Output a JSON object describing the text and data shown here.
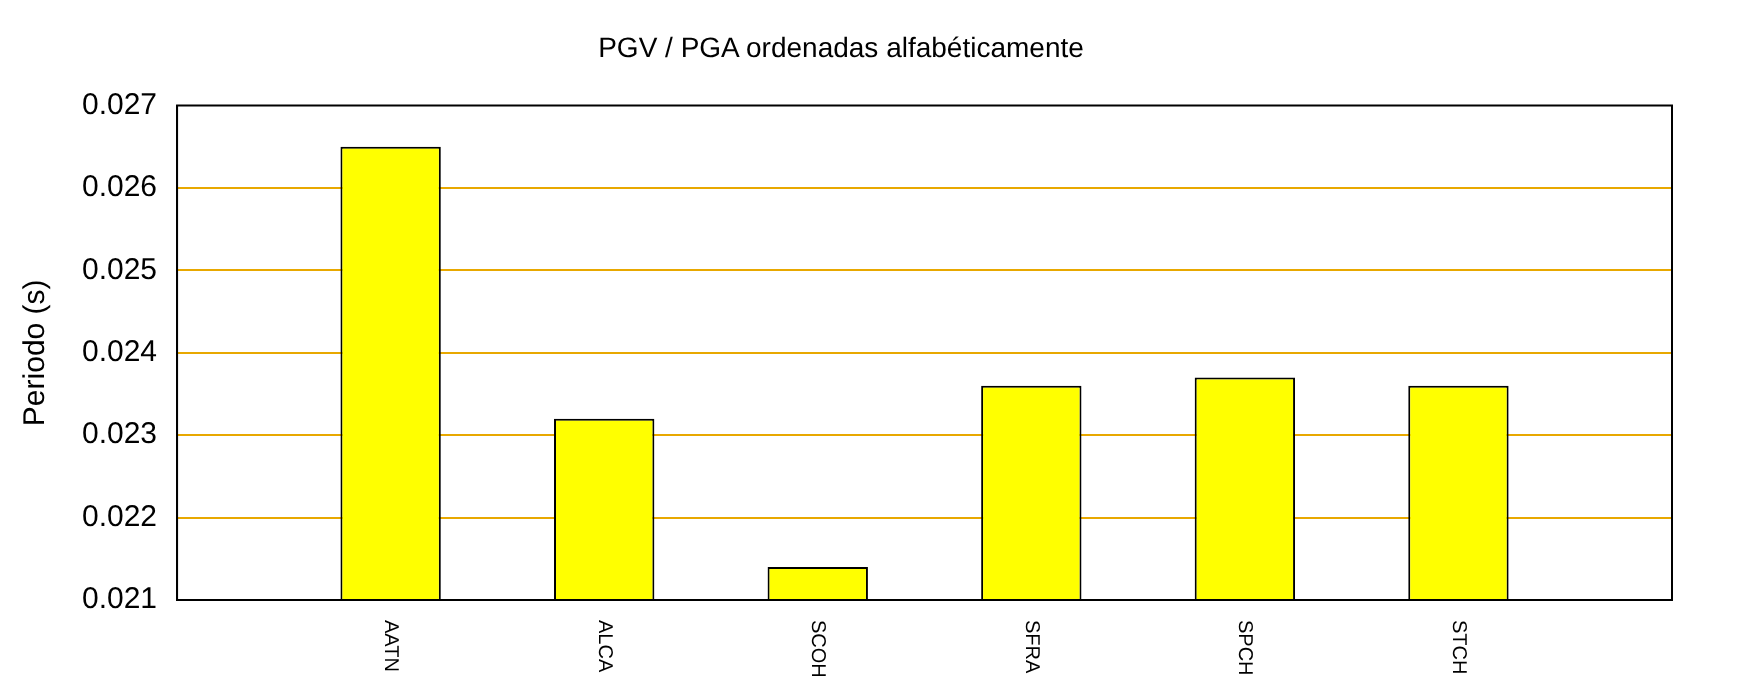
{
  "chart_data": {
    "type": "bar",
    "title": "PGV / PGA ordenadas alfabéticamente",
    "ylabel": "Periodo (s)",
    "categories": [
      "AATN",
      "ALCA",
      "SCOH",
      "SFRA",
      "SPCH",
      "STCH"
    ],
    "values": [
      0.0265,
      0.0232,
      0.0214,
      0.0236,
      0.0237,
      0.0236
    ],
    "color": "#ffff00",
    "ylim": [
      0.021,
      0.027
    ],
    "yticks": [
      0.021,
      0.022,
      0.023,
      0.024,
      0.025,
      0.026,
      0.027
    ],
    "grid": "y",
    "legend": false
  }
}
